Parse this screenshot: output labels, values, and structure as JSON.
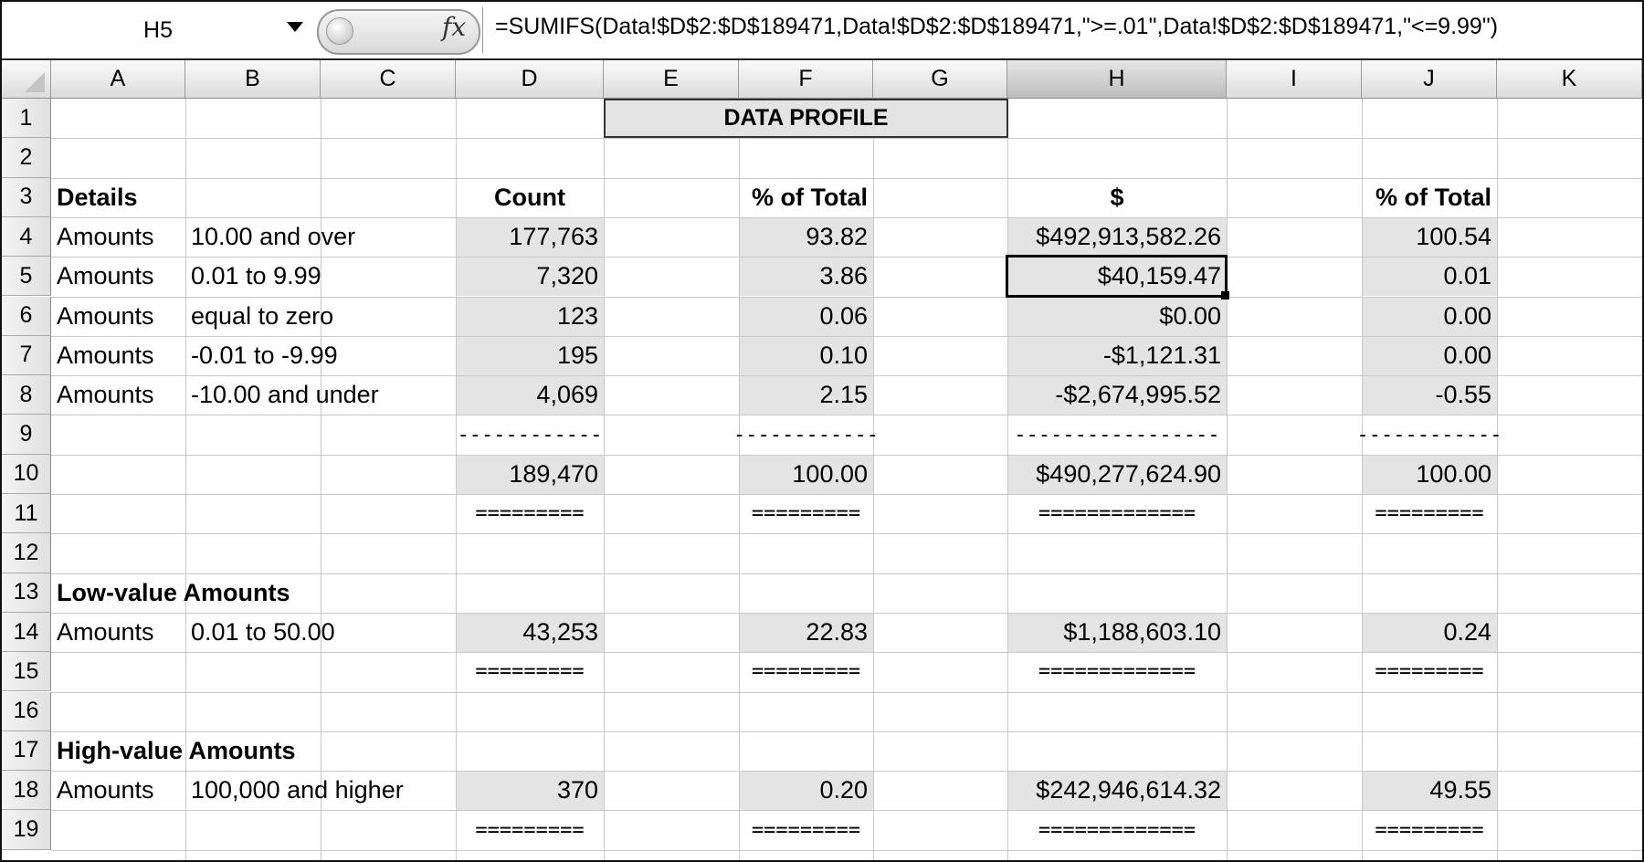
{
  "formula_bar": {
    "name_box": "H5",
    "fx_label": "fx",
    "formula": "=SUMIFS(Data!$D$2:$D$189471,Data!$D$2:$D$189471,\">=.01\",Data!$D$2:$D$189471,\"<=9.99\")"
  },
  "columns": [
    "A",
    "B",
    "C",
    "D",
    "E",
    "F",
    "G",
    "H",
    "I",
    "J",
    "K"
  ],
  "rows": [
    "1",
    "2",
    "3",
    "4",
    "5",
    "6",
    "7",
    "8",
    "9",
    "10",
    "11",
    "12",
    "13",
    "14",
    "15",
    "16",
    "17",
    "18",
    "19"
  ],
  "title": "DATA PROFILE",
  "headers": {
    "details": "Details",
    "count": "Count",
    "pct_count": "% of Total",
    "dollars": "$",
    "pct_dollars": "% of Total"
  },
  "detail_rows": [
    {
      "label": "Amounts",
      "range": "10.00 and over",
      "count": "177,763",
      "pct": "93.82",
      "amount": "$492,913,582.26",
      "pct_amt": "100.54"
    },
    {
      "label": "Amounts",
      "range": "0.01 to 9.99",
      "count": "7,320",
      "pct": "3.86",
      "amount": "$40,159.47",
      "pct_amt": "0.01"
    },
    {
      "label": "Amounts",
      "range": "equal to zero",
      "count": "123",
      "pct": "0.06",
      "amount": "$0.00",
      "pct_amt": "0.00"
    },
    {
      "label": "Amounts",
      "range": "-0.01 to -9.99",
      "count": "195",
      "pct": "0.10",
      "amount": "-$1,121.31",
      "pct_amt": "0.00"
    },
    {
      "label": "Amounts",
      "range": "-10.00 and under",
      "count": "4,069",
      "pct": "2.15",
      "amount": "-$2,674,995.52",
      "pct_amt": "-0.55"
    }
  ],
  "separators": {
    "dash_count": "------------",
    "dash_pct": "------------",
    "dash_amount": "-----------------",
    "dash_pct_amt": "------------",
    "eq_count": "=========",
    "eq_pct": "=========",
    "eq_amount": "=============",
    "eq_pct_amt": "========="
  },
  "totals": {
    "count": "189,470",
    "pct": "100.00",
    "amount": "$490,277,624.90",
    "pct_amt": "100.00"
  },
  "low_value": {
    "heading": "Low-value Amounts",
    "label": "Amounts",
    "range": "0.01 to 50.00",
    "count": "43,253",
    "pct": "22.83",
    "amount": "$1,188,603.10",
    "pct_amt": "0.24"
  },
  "high_value": {
    "heading": "High-value Amounts",
    "label": "Amounts",
    "range": "100,000 and higher",
    "count": "370",
    "pct": "0.20",
    "amount": "$242,946,614.32",
    "pct_amt": "49.55"
  },
  "colors": {
    "shade": "#e4e4e4",
    "header_bg": "#dcdcdc",
    "gridline": "#c8c8c8"
  }
}
